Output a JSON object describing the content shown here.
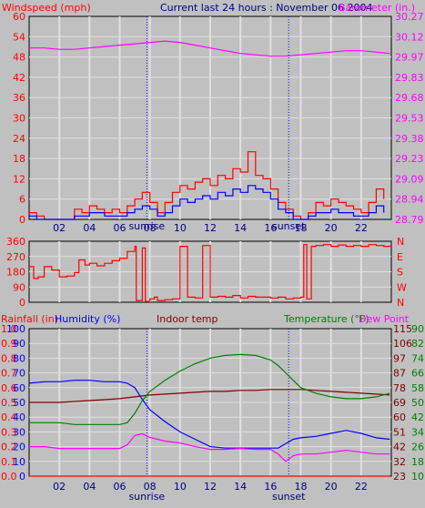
{
  "header": {
    "title": "Current last 24 hours : November 06 2004",
    "left_label": "Windspeed (mph)",
    "right_label": "Barometer (in.)"
  },
  "x_ticks": [
    "02",
    "04",
    "06",
    "08",
    "10",
    "12",
    "14",
    "16",
    "18",
    "20",
    "22"
  ],
  "events": {
    "sunrise": "sunrise",
    "sunset": "sunset"
  },
  "chart_data": [
    {
      "type": "line",
      "panel": "wind-barometer",
      "xlabel": "",
      "xlim": [
        0,
        24
      ],
      "y_left": {
        "label": "Windspeed (mph)",
        "range": [
          0,
          60
        ],
        "ticks": [
          0,
          6,
          12,
          18,
          24,
          30,
          36,
          42,
          48,
          54,
          60
        ],
        "ticklabels": [
          "0",
          "6",
          "12",
          "18",
          "24",
          "30",
          "36",
          "42",
          "48",
          "54",
          "60"
        ]
      },
      "y_right": {
        "label": "Barometer (in.)",
        "range": [
          28.79,
          30.27
        ],
        "ticks": [
          28.79,
          28.94,
          29.09,
          29.23,
          29.38,
          29.53,
          29.68,
          29.83,
          29.97,
          30.12,
          30.27
        ],
        "ticklabels": [
          "28.79",
          "28.94",
          "29.09",
          "29.23",
          "29.38",
          "29.53",
          "29.68",
          "29.83",
          "29.97",
          "30.12",
          "30.27"
        ]
      },
      "series": [
        {
          "name": "gust",
          "axis": "left",
          "color": "#ff0000",
          "style": "step",
          "x": [
            0.0,
            0.5,
            1.0,
            1.5,
            2.0,
            2.5,
            3.0,
            3.5,
            4.0,
            4.5,
            5.0,
            5.5,
            6.0,
            6.5,
            7.0,
            7.5,
            8.0,
            8.5,
            9.0,
            9.5,
            10.0,
            10.5,
            11.0,
            11.5,
            12.0,
            12.5,
            13.0,
            13.5,
            14.0,
            14.5,
            15.0,
            15.5,
            16.0,
            16.5,
            17.0,
            17.5,
            18.0,
            18.5,
            19.0,
            19.5,
            20.0,
            20.5,
            21.0,
            21.5,
            22.0,
            22.5,
            23.0,
            23.5
          ],
          "values": [
            2,
            1,
            0,
            0,
            0,
            0,
            3,
            2,
            4,
            3,
            2,
            3,
            2,
            4,
            6,
            8,
            5,
            2,
            5,
            8,
            10,
            9,
            11,
            12,
            10,
            13,
            12,
            15,
            14,
            20,
            13,
            12,
            9,
            5,
            3,
            1,
            0,
            2,
            5,
            4,
            6,
            5,
            4,
            3,
            2,
            5,
            9,
            6
          ]
        },
        {
          "name": "wind",
          "axis": "left",
          "color": "#0000ff",
          "style": "step",
          "x": [
            0.0,
            0.5,
            1.0,
            1.5,
            2.0,
            2.5,
            3.0,
            3.5,
            4.0,
            4.5,
            5.0,
            5.5,
            6.0,
            6.5,
            7.0,
            7.5,
            8.0,
            8.5,
            9.0,
            9.5,
            10.0,
            10.5,
            11.0,
            11.5,
            12.0,
            12.5,
            13.0,
            13.5,
            14.0,
            14.5,
            15.0,
            15.5,
            16.0,
            16.5,
            17.0,
            17.5,
            18.0,
            18.5,
            19.0,
            19.5,
            20.0,
            20.5,
            21.0,
            21.5,
            22.0,
            22.5,
            23.0,
            23.5
          ],
          "values": [
            1,
            0,
            0,
            0,
            0,
            0,
            1,
            1,
            2,
            2,
            1,
            1,
            1,
            2,
            3,
            4,
            3,
            1,
            2,
            4,
            6,
            5,
            6,
            7,
            6,
            8,
            7,
            9,
            8,
            10,
            9,
            8,
            6,
            3,
            2,
            0,
            0,
            1,
            2,
            2,
            3,
            2,
            2,
            1,
            1,
            2,
            4,
            2
          ]
        },
        {
          "name": "barometer",
          "axis": "right",
          "color": "#ff00ff",
          "style": "line",
          "x": [
            0,
            1,
            2,
            3,
            4,
            5,
            6,
            7,
            8,
            9,
            10,
            11,
            12,
            13,
            14,
            15,
            16,
            17,
            18,
            19,
            20,
            21,
            22,
            23,
            23.9
          ],
          "values": [
            30.04,
            30.04,
            30.03,
            30.03,
            30.04,
            30.05,
            30.06,
            30.07,
            30.08,
            30.09,
            30.08,
            30.06,
            30.04,
            30.02,
            30.0,
            29.99,
            29.98,
            29.98,
            29.99,
            30.0,
            30.01,
            30.02,
            30.02,
            30.01,
            30.0
          ]
        }
      ]
    },
    {
      "type": "line",
      "panel": "wind-direction",
      "xlim": [
        0,
        24
      ],
      "y_left": {
        "range": [
          0,
          360
        ],
        "ticks": [
          0,
          90,
          180,
          270,
          360
        ],
        "ticklabels": [
          "0",
          "90",
          "180",
          "270",
          "360"
        ]
      },
      "y_right": {
        "ticklabels": [
          "N",
          "W",
          "S",
          "E",
          "N"
        ]
      },
      "series": [
        {
          "name": "direction",
          "color": "#ff0000",
          "style": "line",
          "x": [
            0.0,
            0.3,
            0.6,
            1.0,
            1.5,
            2.0,
            2.5,
            3.0,
            3.3,
            3.7,
            4.0,
            4.5,
            5.0,
            5.5,
            6.0,
            6.5,
            7.0,
            7.1,
            7.5,
            7.7,
            8.0,
            8.3,
            8.5,
            9.0,
            9.5,
            10.0,
            10.5,
            11.0,
            11.5,
            12.0,
            12.5,
            13.0,
            13.5,
            14.0,
            14.5,
            15.0,
            15.5,
            16.0,
            16.5,
            17.0,
            17.5,
            18.0,
            18.2,
            18.4,
            18.7,
            19.0,
            19.5,
            20.0,
            20.5,
            21.0,
            21.5,
            22.0,
            22.5,
            23.0,
            23.5,
            23.9
          ],
          "values": [
            210,
            140,
            150,
            210,
            190,
            150,
            155,
            175,
            250,
            220,
            230,
            215,
            230,
            245,
            260,
            300,
            330,
            10,
            320,
            5,
            20,
            30,
            10,
            15,
            20,
            330,
            30,
            25,
            335,
            30,
            35,
            30,
            40,
            25,
            35,
            30,
            30,
            25,
            30,
            20,
            25,
            30,
            340,
            20,
            330,
            335,
            340,
            330,
            338,
            330,
            335,
            330,
            340,
            335,
            330,
            335
          ]
        }
      ]
    },
    {
      "type": "line",
      "panel": "temp-humidity",
      "xlim": [
        0,
        24
      ],
      "title_labels": {
        "rainfall": "Rainfall (in)",
        "humidity": "Humidity (%)",
        "indoor": "Indoor temp",
        "temperature": "Temperature (°F)",
        "dewpoint": "Dew Point"
      },
      "y_rain": {
        "label": "Rainfall (in)",
        "range": [
          0,
          1
        ],
        "ticklabels": [
          "0.0",
          "0.1",
          "0.2",
          "0.3",
          "0.4",
          "0.5",
          "0.6",
          "0.7",
          "0.8",
          "0.9",
          "1.0"
        ]
      },
      "y_humidity": {
        "label": "Humidity (%)",
        "range": [
          0,
          100
        ],
        "ticklabels": [
          "0",
          "10",
          "20",
          "30",
          "40",
          "50",
          "60",
          "70",
          "80",
          "90",
          "100"
        ]
      },
      "y_temp_c": {
        "ticklabels": [
          "23",
          "32",
          "42",
          "51",
          "60",
          "69",
          "78",
          "87",
          "97",
          "106",
          "115"
        ]
      },
      "y_temp_f": {
        "range": [
          10,
          90
        ],
        "ticklabels": [
          "10",
          "18",
          "26",
          "34",
          "42",
          "50",
          "58",
          "66",
          "74",
          "82",
          "90"
        ]
      },
      "series": [
        {
          "name": "Humidity",
          "axis": "humidity",
          "color": "#0000ff",
          "x": [
            0,
            1,
            2,
            3,
            4,
            5,
            6,
            6.5,
            7,
            7.5,
            8,
            9,
            10,
            11,
            12,
            13,
            14,
            15,
            16,
            16.5,
            17,
            17.5,
            18,
            19,
            20,
            21,
            22,
            23,
            23.9
          ],
          "values": [
            63,
            64,
            64,
            65,
            65,
            64,
            64,
            63,
            60,
            52,
            45,
            37,
            30,
            25,
            20,
            19,
            19,
            19,
            19,
            19,
            22,
            25,
            26,
            27,
            29,
            31,
            29,
            26,
            25
          ]
        },
        {
          "name": "Temperature",
          "axis": "temp_f",
          "color": "#008000",
          "x": [
            0,
            1,
            2,
            3,
            4,
            5,
            6,
            6.5,
            7,
            7.5,
            8,
            9,
            10,
            11,
            12,
            13,
            14,
            15,
            16,
            16.5,
            17,
            17.5,
            18,
            19,
            20,
            21,
            22,
            23,
            23.9
          ],
          "values": [
            39,
            39,
            39,
            38,
            38,
            38,
            38,
            39,
            44,
            51,
            56,
            62,
            67,
            71,
            74,
            75.5,
            76,
            75.5,
            73,
            70,
            66,
            62,
            58,
            55,
            53,
            52,
            52,
            53,
            55
          ]
        },
        {
          "name": "Indoor temp",
          "axis": "temp_f",
          "color": "#800000",
          "x": [
            0,
            1,
            2,
            3,
            4,
            5,
            6,
            7,
            8,
            9,
            10,
            11,
            12,
            13,
            14,
            15,
            16,
            17,
            18,
            19,
            20,
            21,
            22,
            23,
            23.9
          ],
          "values": [
            50,
            50,
            50,
            50.5,
            51,
            51.5,
            52,
            53,
            54,
            54.5,
            55,
            55.5,
            56,
            56,
            56.5,
            56.5,
            57,
            57,
            57,
            56.5,
            56,
            55.5,
            55,
            54.5,
            54
          ]
        },
        {
          "name": "Dew Point",
          "axis": "temp_f",
          "color": "#ff00ff",
          "x": [
            0,
            1,
            2,
            3,
            4,
            5,
            6,
            6.5,
            7,
            7.5,
            8,
            9,
            10,
            11,
            12,
            13,
            14,
            15,
            16,
            16.5,
            17,
            17.5,
            18,
            19,
            20,
            21,
            22,
            23,
            23.9
          ],
          "values": [
            26,
            26,
            25,
            25,
            25,
            25,
            25,
            27,
            32,
            33,
            31,
            29,
            28,
            26,
            24.5,
            24.5,
            25,
            24.5,
            24.5,
            22,
            18,
            21,
            22,
            22,
            23,
            24,
            23,
            22,
            22
          ]
        },
        {
          "name": "Rainfall",
          "axis": "rain",
          "color": "#ff0000",
          "x": [
            0,
            23.9
          ],
          "values": [
            0,
            0
          ]
        }
      ]
    }
  ],
  "colors": {
    "background": "#c0c0c0",
    "grid": "#e0e0e0",
    "frame": "#000000",
    "red": "#ff0000",
    "blue": "#0000ff",
    "magenta": "#ff00ff",
    "green": "#008000",
    "maroon": "#800000",
    "navy": "#000080"
  }
}
